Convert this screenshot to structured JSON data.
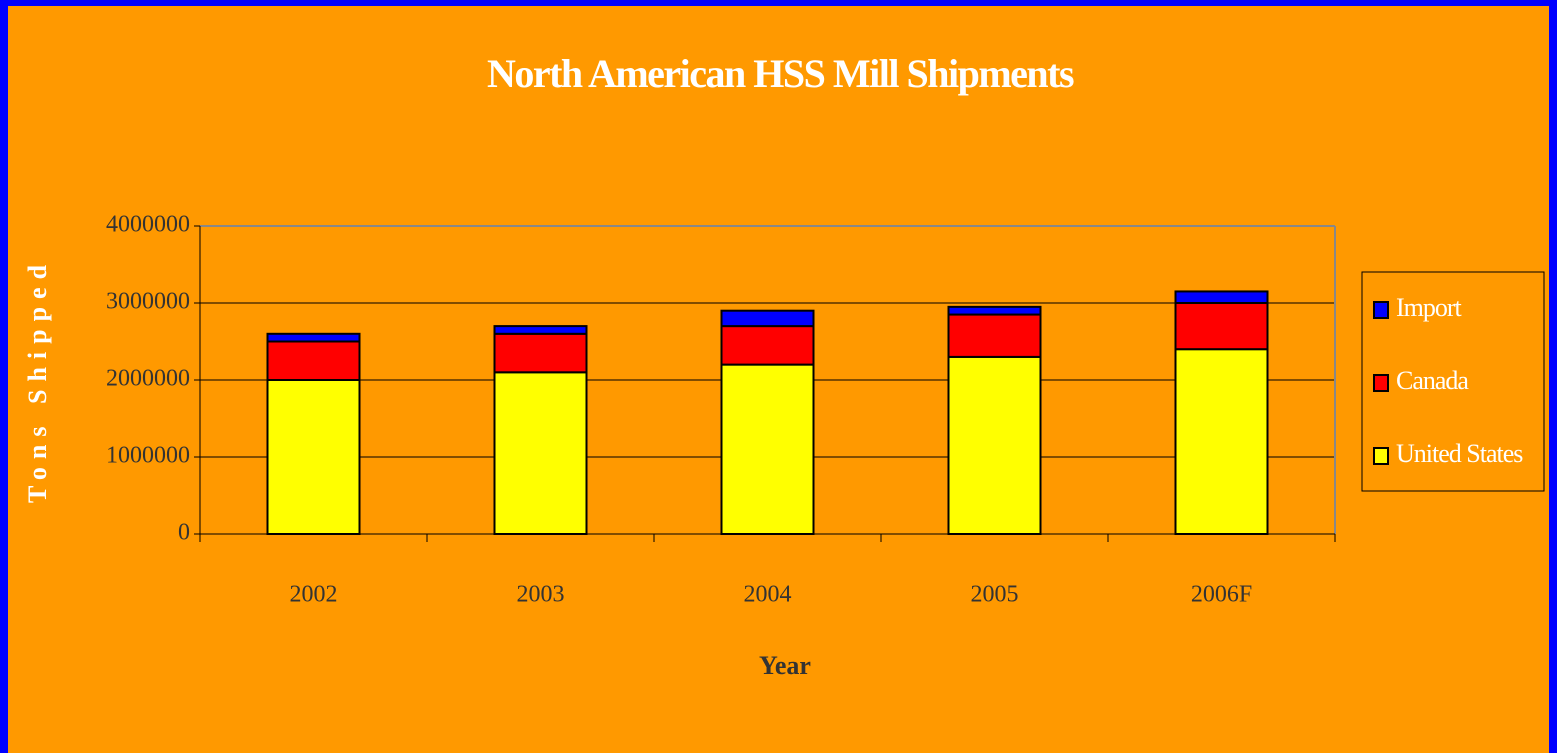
{
  "chart_data": {
    "type": "stacked_bar",
    "title": "North American HSS Mill Shipments",
    "x_label": "Year",
    "y_label": "Tons Shipped",
    "categories": [
      "2002",
      "2003",
      "2004",
      "2005",
      "2006F"
    ],
    "series": [
      {
        "name": "United States",
        "color": "#ffff00",
        "values": [
          2000000,
          2100000,
          2200000,
          2300000,
          2400000
        ]
      },
      {
        "name": "Canada",
        "color": "#ff0000",
        "values": [
          500000,
          500000,
          500000,
          550000,
          600000
        ]
      },
      {
        "name": "Import",
        "color": "#0000ff",
        "values": [
          100000,
          100000,
          200000,
          100000,
          150000
        ]
      }
    ],
    "ylim": [
      0,
      4000000
    ],
    "yticks": [
      0,
      1000000,
      2000000,
      3000000,
      4000000
    ],
    "grid": true,
    "legend": "right"
  }
}
